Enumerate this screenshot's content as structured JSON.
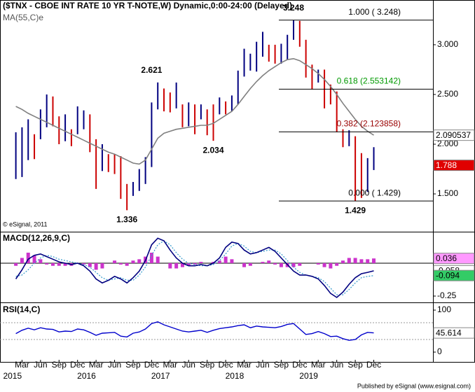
{
  "footer": "Published by eSignal (www.esignal.com)",
  "chart_data": [
    {
      "type": "hl-bars",
      "title": "($TNX - CBOE INT RATE 10 YR T-NOTE,W) Dynamic,0:00-24:00 (Delayed)",
      "watermark": "© eSignal, 2011",
      "x": [
        "2015-02",
        "2015-03",
        "2015-04",
        "2015-05",
        "2015-06",
        "2015-07",
        "2015-08",
        "2015-09",
        "2015-10",
        "2015-11",
        "2015-12",
        "2016-01",
        "2016-02",
        "2016-03",
        "2016-04",
        "2016-05",
        "2016-06",
        "2016-07",
        "2016-08",
        "2016-09",
        "2016-10",
        "2016-11",
        "2016-12",
        "2017-01",
        "2017-02",
        "2017-03",
        "2017-04",
        "2017-05",
        "2017-06",
        "2017-07",
        "2017-08",
        "2017-09",
        "2017-10",
        "2017-11",
        "2017-12",
        "2018-01",
        "2018-02",
        "2018-03",
        "2018-04",
        "2018-05",
        "2018-06",
        "2018-07",
        "2018-08",
        "2018-09",
        "2018-10",
        "2018-11",
        "2018-12",
        "2019-01",
        "2019-02",
        "2019-03",
        "2019-04",
        "2019-05",
        "2019-06",
        "2019-07",
        "2019-08",
        "2019-09",
        "2019-10",
        "2019-11",
        "2019-12"
      ],
      "xlim": [
        "2014-12",
        "2020-08"
      ],
      "high": [
        2.12,
        2.17,
        2.25,
        2.1,
        2.35,
        2.5,
        2.48,
        2.28,
        2.3,
        2.15,
        2.38,
        2.34,
        2.3,
        2.05,
        2.0,
        1.9,
        1.9,
        1.88,
        1.6,
        1.62,
        1.75,
        1.87,
        2.42,
        2.621,
        2.56,
        2.52,
        2.62,
        2.4,
        2.42,
        2.4,
        2.4,
        2.35,
        2.4,
        2.47,
        2.43,
        2.49,
        2.74,
        2.96,
        2.91,
        3.03,
        3.13,
        3.0,
        3.0,
        3.01,
        3.1,
        3.248,
        3.24,
        3.05,
        2.8,
        2.75,
        2.75,
        2.6,
        2.53,
        2.15,
        2.14,
        2.08,
        1.91,
        1.86,
        1.97
      ],
      "low": [
        1.65,
        1.67,
        1.84,
        1.85,
        2.05,
        2.17,
        2.18,
        2.0,
        2.03,
        1.98,
        2.1,
        2.15,
        1.92,
        1.55,
        1.73,
        1.72,
        1.7,
        1.45,
        1.336,
        1.48,
        1.53,
        1.6,
        1.77,
        2.35,
        2.33,
        2.32,
        2.36,
        2.17,
        2.18,
        2.1,
        2.25,
        2.09,
        2.034,
        2.3,
        2.3,
        2.33,
        2.4,
        2.68,
        2.74,
        2.73,
        2.88,
        2.83,
        2.81,
        2.81,
        2.85,
        3.05,
        2.98,
        2.67,
        2.55,
        2.62,
        2.36,
        2.4,
        2.12,
        1.97,
        1.98,
        1.429,
        1.46,
        1.52,
        1.74
      ],
      "up_color": "#000080",
      "down_color": "#cc0000",
      "last_close": 1.788,
      "last_color": "#e00000",
      "ma": {
        "name": "MA(55,C)e",
        "color": "#808080",
        "values": [
          2.38,
          2.35,
          2.31,
          2.28,
          2.25,
          2.22,
          2.19,
          2.16,
          2.13,
          2.1,
          2.07,
          2.04,
          2.01,
          1.98,
          1.95,
          1.92,
          1.9,
          1.87,
          1.84,
          1.81,
          1.8,
          1.84,
          1.95,
          2.06,
          2.11,
          2.13,
          2.15,
          2.16,
          2.17,
          2.18,
          2.19,
          2.19,
          2.21,
          2.25,
          2.29,
          2.33,
          2.4,
          2.48,
          2.56,
          2.63,
          2.69,
          2.74,
          2.78,
          2.82,
          2.85,
          2.86,
          2.84,
          2.8,
          2.76,
          2.71,
          2.65,
          2.58,
          2.5,
          2.41,
          2.33,
          2.25,
          2.18,
          2.13,
          2.090537
        ]
      },
      "annotations": [
        {
          "x": "2016-08",
          "value": 1.336,
          "position": "below"
        },
        {
          "x": "2016-12",
          "value": 2.621,
          "position": "above"
        },
        {
          "x": "2017-10",
          "value": 2.034,
          "position": "below"
        },
        {
          "x": "2018-11",
          "value": 3.248,
          "position": "above"
        },
        {
          "x": "2019-09",
          "value": 1.429,
          "position": "below"
        }
      ],
      "fib_levels": [
        {
          "label": "1.000 ( 3.248)",
          "value": 3.248,
          "color": "#000000"
        },
        {
          "label": "0.618 (2.553142)",
          "value": 2.553142,
          "color": "#009900"
        },
        {
          "label": "0.382 (2.123858)",
          "value": 2.123858,
          "color": "#990000"
        },
        {
          "label": "0.000 ( 1.429)",
          "value": 1.429,
          "color": "#000000"
        }
      ],
      "ylim": [
        1.12,
        3.45
      ],
      "yticks": [
        {
          "value": 1.5,
          "label": "1.500"
        },
        {
          "value": 2.0,
          "label": "2.000"
        },
        {
          "value": 2.5,
          "label": "2.500"
        },
        {
          "value": 3.0,
          "label": "3.000"
        }
      ]
    },
    {
      "type": "macd",
      "title": "MACD(12,26,9,C)",
      "macd": {
        "color": "#000080",
        "box_color": "#ffffff",
        "values": [
          -0.12,
          -0.05,
          0.03,
          0.06,
          0.07,
          0.05,
          0.03,
          0.01,
          0.0,
          -0.01,
          0.0,
          -0.02,
          -0.06,
          -0.12,
          -0.15,
          -0.13,
          -0.1,
          -0.12,
          -0.15,
          -0.11,
          -0.06,
          0.02,
          0.14,
          0.19,
          0.17,
          0.1,
          0.04,
          0.0,
          -0.02,
          -0.02,
          -0.01,
          -0.02,
          0.0,
          0.04,
          0.12,
          0.16,
          0.15,
          0.1,
          0.07,
          0.08,
          0.1,
          0.12,
          0.09,
          0.04,
          -0.01,
          -0.06,
          -0.09,
          -0.09,
          -0.1,
          -0.12,
          -0.17,
          -0.23,
          -0.26,
          -0.22,
          -0.16,
          -0.11,
          -0.08,
          -0.07,
          -0.058
        ]
      },
      "signal": {
        "color": "#3399cc",
        "box_color": "#33cc66",
        "dashed": true,
        "values": [
          -0.1,
          -0.09,
          -0.05,
          0.0,
          0.04,
          0.06,
          0.05,
          0.03,
          0.02,
          0.01,
          0.0,
          -0.01,
          -0.03,
          -0.07,
          -0.11,
          -0.13,
          -0.12,
          -0.11,
          -0.13,
          -0.13,
          -0.09,
          -0.03,
          0.06,
          0.14,
          0.17,
          0.14,
          0.08,
          0.03,
          0.0,
          -0.01,
          -0.02,
          -0.02,
          -0.01,
          0.02,
          0.07,
          0.13,
          0.15,
          0.13,
          0.09,
          0.08,
          0.09,
          0.1,
          0.1,
          0.07,
          0.02,
          -0.03,
          -0.07,
          -0.09,
          -0.1,
          -0.11,
          -0.14,
          -0.19,
          -0.24,
          -0.24,
          -0.2,
          -0.15,
          -0.11,
          -0.1,
          -0.094
        ]
      },
      "histogram": {
        "color": "#cc33cc",
        "box_color": "#ff99ff",
        "values": [
          -0.02,
          0.04,
          0.08,
          0.06,
          0.03,
          -0.01,
          -0.02,
          -0.02,
          -0.02,
          -0.02,
          0.0,
          -0.01,
          -0.03,
          -0.05,
          -0.04,
          0.0,
          0.02,
          -0.01,
          -0.02,
          0.02,
          0.03,
          0.05,
          0.08,
          0.05,
          0.0,
          -0.04,
          -0.04,
          -0.03,
          -0.02,
          -0.01,
          0.01,
          0.0,
          0.01,
          0.02,
          0.05,
          0.03,
          0.0,
          -0.03,
          -0.02,
          0.0,
          0.01,
          0.02,
          -0.01,
          -0.03,
          -0.03,
          -0.03,
          -0.02,
          0.0,
          0.0,
          -0.01,
          -0.03,
          -0.04,
          -0.02,
          0.02,
          0.04,
          0.04,
          0.03,
          0.03,
          0.036
        ]
      },
      "ylim": [
        -0.298,
        0.234
      ],
      "yticks": [
        {
          "value": -0.25,
          "label": "-0.25"
        }
      ]
    },
    {
      "type": "line",
      "title": "RSI(14,C)",
      "color": "#0000cc",
      "values": [
        44,
        52,
        57,
        53,
        58,
        55,
        54,
        48,
        50,
        49,
        55,
        53,
        47,
        40,
        45,
        46,
        47,
        38,
        36,
        45,
        48,
        55,
        68,
        72,
        65,
        60,
        55,
        50,
        48,
        50,
        52,
        47,
        52,
        56,
        58,
        60,
        63,
        65,
        58,
        62,
        60,
        59,
        58,
        61,
        66,
        68,
        55,
        42,
        44,
        49,
        44,
        37,
        38,
        32,
        28,
        30,
        41,
        47,
        45.614
      ],
      "levels": [
        30,
        70
      ],
      "ylim": [
        -25,
        116.7
      ],
      "yticks": [
        0,
        100
      ],
      "xticks": [
        {
          "value": "2015-03",
          "label": "Mar"
        },
        {
          "value": "2015-06",
          "label": "Jun"
        },
        {
          "value": "2015-09",
          "label": "Sep"
        },
        {
          "value": "2015-12",
          "label": "Dec"
        },
        {
          "value": "2016-03",
          "label": "Mar"
        },
        {
          "value": "2016-06",
          "label": "Jun"
        },
        {
          "value": "2016-09",
          "label": "Sep"
        },
        {
          "value": "2016-12",
          "label": "Dec"
        },
        {
          "value": "2017-03",
          "label": "Mar"
        },
        {
          "value": "2017-06",
          "label": "Jun"
        },
        {
          "value": "2017-09",
          "label": "Sep"
        },
        {
          "value": "2017-12",
          "label": "Dec"
        },
        {
          "value": "2018-03",
          "label": "Mar"
        },
        {
          "value": "2018-06",
          "label": "Jun"
        },
        {
          "value": "2018-09",
          "label": "Sep"
        },
        {
          "value": "2018-12",
          "label": "Dec"
        },
        {
          "value": "2019-03",
          "label": "Mar"
        },
        {
          "value": "2019-06",
          "label": "Jun"
        },
        {
          "value": "2019-09",
          "label": "Sep"
        },
        {
          "value": "2019-12",
          "label": "Dec"
        }
      ],
      "year_labels": [
        {
          "value": "2015-01",
          "label": "2015"
        },
        {
          "value": "2016-01",
          "label": "2016"
        },
        {
          "value": "2017-01",
          "label": "2017"
        },
        {
          "value": "2018-01",
          "label": "2018"
        },
        {
          "value": "2019-01",
          "label": "2019"
        }
      ]
    }
  ]
}
